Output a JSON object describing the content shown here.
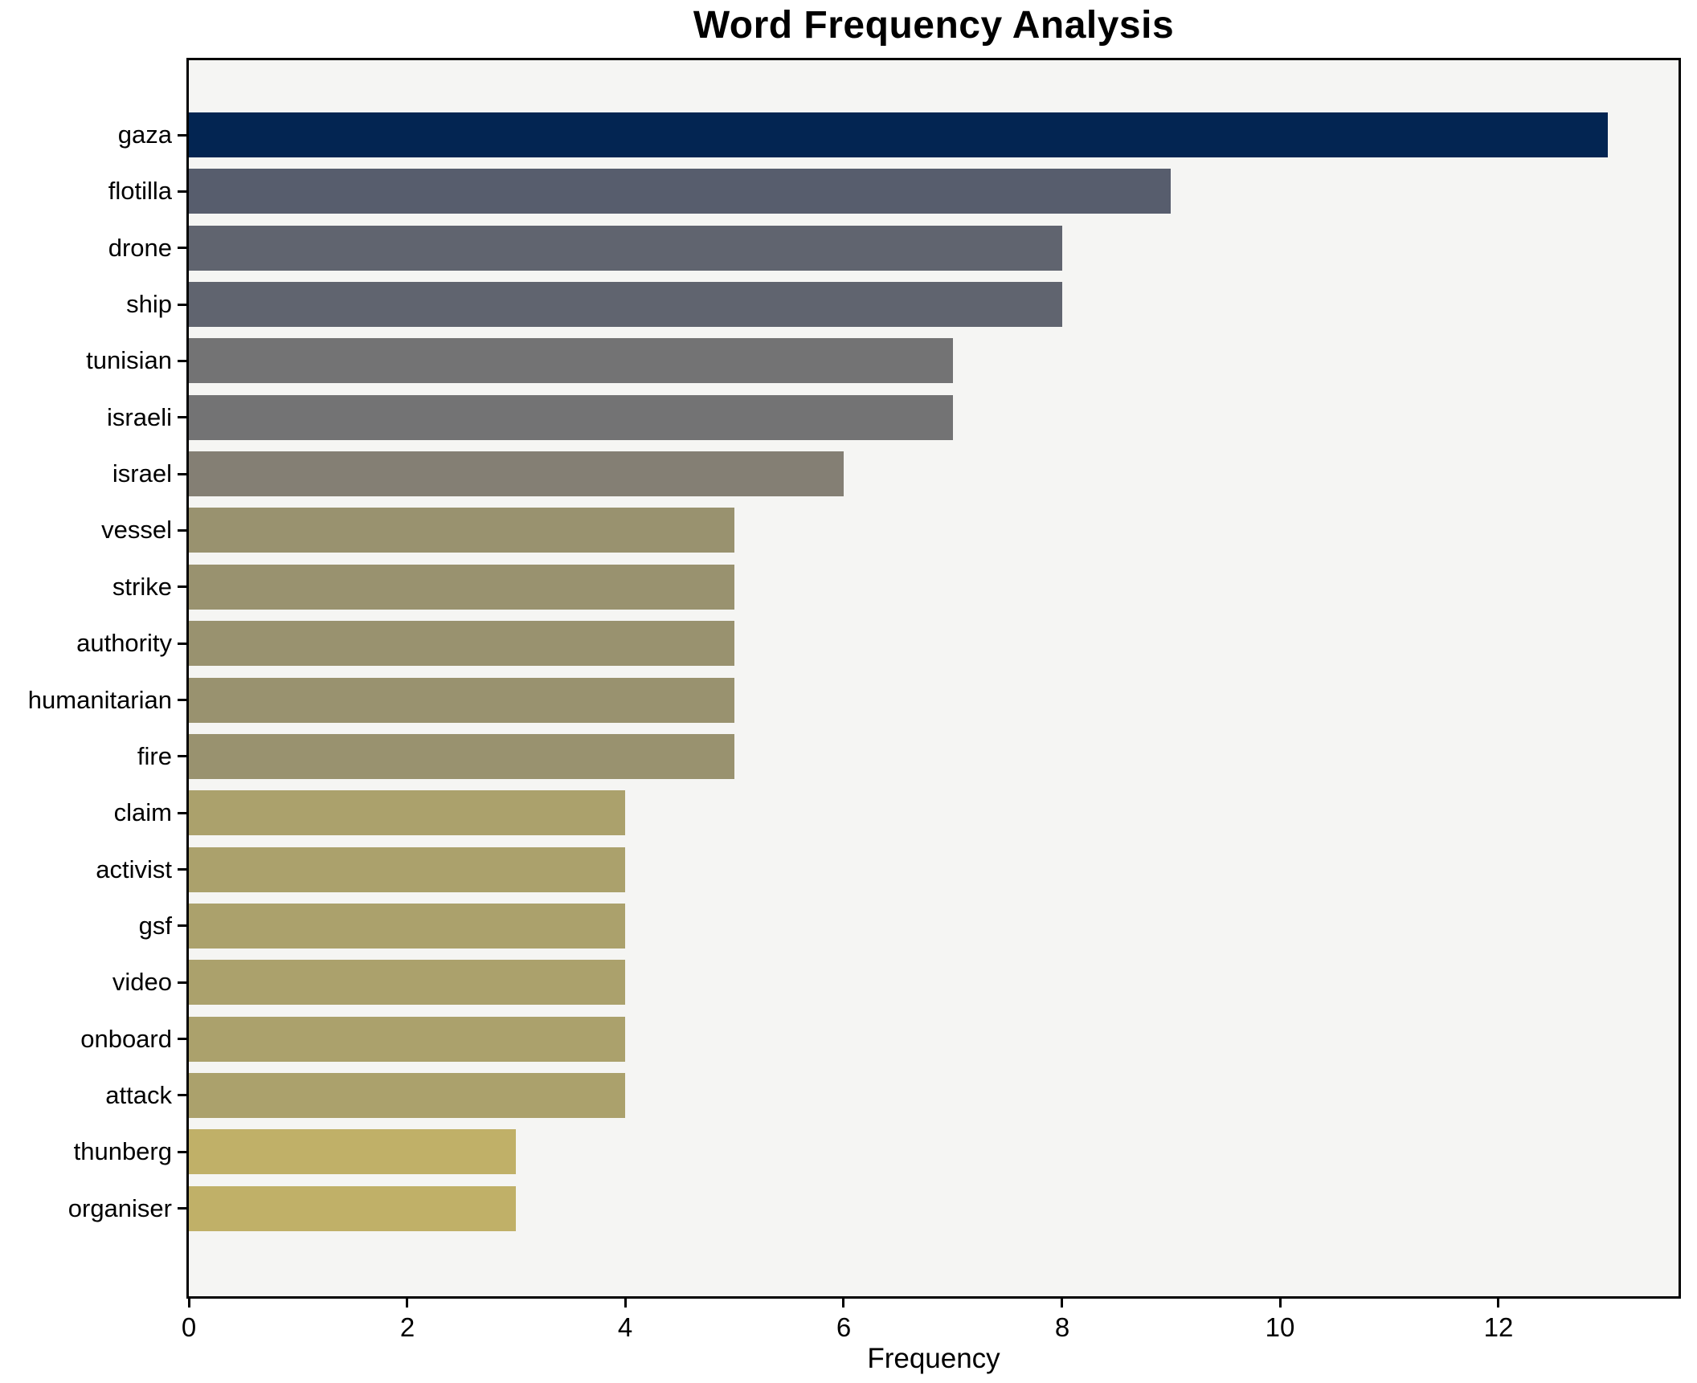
{
  "title": "Word Frequency Analysis",
  "chart_data": {
    "type": "bar",
    "orientation": "horizontal",
    "title": "Word Frequency Analysis",
    "xlabel": "Frequency",
    "ylabel": "",
    "xlim": [
      0,
      13.65
    ],
    "xticks": [
      0,
      2,
      4,
      6,
      8,
      10,
      12
    ],
    "grid": false,
    "legend": false,
    "colormap": "cividis",
    "figure_bg": "#ffffff",
    "plot_bg": "#f5f5f3",
    "spine_color": "#000000",
    "text_color": "#000000",
    "categories": [
      "gaza",
      "flotilla",
      "drone",
      "ship",
      "tunisian",
      "israeli",
      "israel",
      "vessel",
      "strike",
      "authority",
      "humanitarian",
      "fire",
      "claim",
      "activist",
      "gsf",
      "video",
      "onboard",
      "attack",
      "thunberg",
      "organiser"
    ],
    "values": [
      13,
      9,
      8,
      8,
      7,
      7,
      6,
      5,
      5,
      5,
      5,
      5,
      4,
      4,
      4,
      4,
      4,
      4,
      3,
      3
    ],
    "bar_colors": [
      "#032552",
      "#575d6d",
      "#60646f",
      "#60646f",
      "#737374",
      "#737374",
      "#847f74",
      "#99926f",
      "#99926f",
      "#99926f",
      "#99926f",
      "#99926f",
      "#aba16c",
      "#aba16c",
      "#aba16c",
      "#aba16c",
      "#aba16c",
      "#aba16c",
      "#c0b068",
      "#c0b068"
    ]
  }
}
